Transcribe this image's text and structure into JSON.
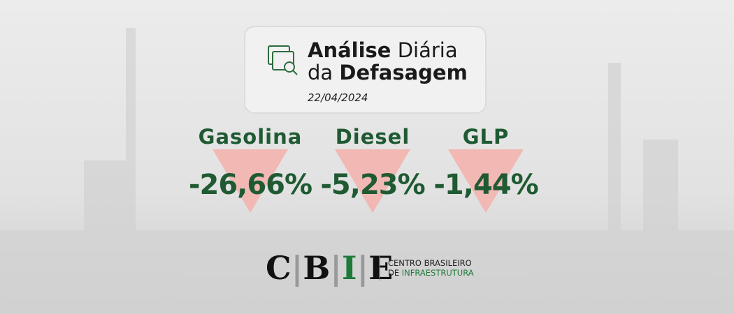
{
  "header": {
    "title": [
      {
        "text": "Análise",
        "bold": true
      },
      {
        "text": "Diária",
        "bold": false
      },
      {
        "text": "da",
        "bold": false
      },
      {
        "text": "Defasagem",
        "bold": true
      }
    ],
    "date": "22/04/2024"
  },
  "items": [
    {
      "name": "Gasolina",
      "value": "-26,66%"
    },
    {
      "name": "Diesel",
      "value": "-5,23%"
    },
    {
      "name": "GLP",
      "value": "-1,44%"
    }
  ],
  "logo": {
    "letters": [
      "C",
      "B",
      "I",
      "E"
    ],
    "tagline": [
      "CENTRO BRASILEIRO",
      "DE",
      "INFRAESTRUTURA"
    ]
  }
}
